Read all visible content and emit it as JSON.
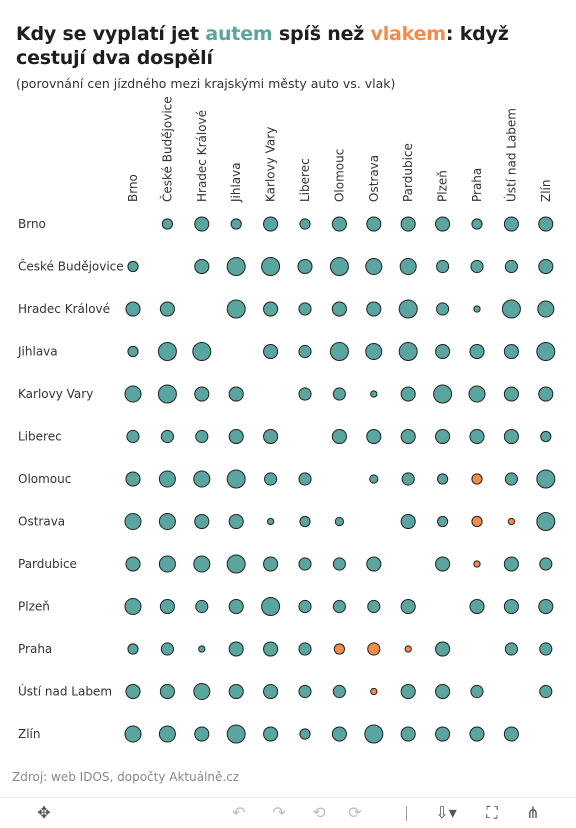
{
  "title": {
    "part1": "Kdy se vyplatí jet ",
    "car_word": "autem",
    "part2": " spíš než ",
    "train_word": "vlakem",
    "part3": ": když cestují dva dospělí"
  },
  "subtitle": "(porovnání cen jízdného mezi krajskými městy auto vs. vlak)",
  "source": "Zdroj: web IDOS, dopočty Aktuálně.cz",
  "colors": {
    "car": "#5aa59f",
    "train": "#f28b4c",
    "stroke": "#222222"
  },
  "toolbar": {
    "move_icon": "✥",
    "undo_icon": "↶",
    "redo_icon": "↷",
    "revert_icon": "⟲",
    "refresh_icon": "⟳",
    "download_icon": "⇩▾",
    "fullscreen_icon": "⛶",
    "share_icon": "⋔"
  },
  "chart_data": {
    "type": "scatter",
    "note_encoding": "bubble matrix; size = relative price difference, color = cheaper mode",
    "columns": [
      "Brno",
      "České Budějovice",
      "Hradec Králové",
      "Jihlava",
      "Karlovy Vary",
      "Liberec",
      "Olomouc",
      "Ostrava",
      "Pardubice",
      "Plzeň",
      "Praha",
      "Ústí nad Labem",
      "Zlín"
    ],
    "rows": [
      "Brno",
      "České Budějovice",
      "Hradec Králové",
      "Jihlava",
      "Karlovy Vary",
      "Liberec",
      "Olomouc",
      "Ostrava",
      "Pardubice",
      "Plzeň",
      "Praha",
      "Ústí nad Labem",
      "Zlín"
    ],
    "sizes": [
      [
        null,
        2,
        3,
        2,
        3,
        2,
        3,
        3,
        3,
        3,
        2,
        3,
        3
      ],
      [
        2,
        null,
        3,
        4,
        4,
        3,
        4,
        3.5,
        3.5,
        2.5,
        2.5,
        2.5,
        3
      ],
      [
        3,
        3,
        null,
        4,
        3,
        2.5,
        3,
        3,
        4,
        2.5,
        1,
        4,
        3.5
      ],
      [
        2,
        4,
        4,
        null,
        3,
        2.5,
        4,
        3.5,
        4,
        3,
        3,
        3,
        4
      ],
      [
        3.5,
        4,
        3,
        3,
        null,
        2.5,
        2.5,
        1,
        3,
        4,
        3.5,
        3,
        3
      ],
      [
        2.5,
        2.5,
        2.5,
        3,
        3,
        null,
        3,
        3,
        3,
        3,
        3,
        3,
        2
      ],
      [
        3,
        3.5,
        3.5,
        4,
        2.5,
        2.5,
        null,
        1.5,
        2.5,
        2,
        2,
        2.5,
        4
      ],
      [
        3.5,
        3.5,
        3,
        3,
        1,
        2,
        1.5,
        null,
        3,
        2,
        2,
        1,
        4
      ],
      [
        3,
        3.5,
        3.5,
        4,
        3,
        2.5,
        2.5,
        3,
        null,
        3,
        1,
        3,
        2.5
      ],
      [
        3.5,
        3,
        2.5,
        3,
        4,
        2.5,
        2.5,
        2.5,
        3,
        null,
        3,
        3,
        3
      ],
      [
        2,
        2.5,
        1,
        3,
        3,
        2.5,
        2,
        2.5,
        1,
        3,
        null,
        2.5,
        2.5
      ],
      [
        3,
        3,
        3.5,
        3,
        3,
        2.5,
        2.5,
        1,
        3,
        3,
        2.5,
        null,
        2.5
      ],
      [
        3.5,
        3.5,
        3,
        4,
        3,
        2,
        3,
        4,
        3,
        3,
        3,
        3,
        null
      ]
    ],
    "colors": [
      [
        null,
        "car",
        "car",
        "car",
        "car",
        "car",
        "car",
        "car",
        "car",
        "car",
        "car",
        "car",
        "car"
      ],
      [
        "car",
        null,
        "car",
        "car",
        "car",
        "car",
        "car",
        "car",
        "car",
        "car",
        "car",
        "car",
        "car"
      ],
      [
        "car",
        "car",
        null,
        "car",
        "car",
        "car",
        "car",
        "car",
        "car",
        "car",
        "car",
        "car",
        "car"
      ],
      [
        "car",
        "car",
        "car",
        null,
        "car",
        "car",
        "car",
        "car",
        "car",
        "car",
        "car",
        "car",
        "car"
      ],
      [
        "car",
        "car",
        "car",
        "car",
        null,
        "car",
        "car",
        "car",
        "car",
        "car",
        "car",
        "car",
        "car"
      ],
      [
        "car",
        "car",
        "car",
        "car",
        "car",
        null,
        "car",
        "car",
        "car",
        "car",
        "car",
        "car",
        "car"
      ],
      [
        "car",
        "car",
        "car",
        "car",
        "car",
        "car",
        null,
        "car",
        "car",
        "car",
        "train",
        "car",
        "car"
      ],
      [
        "car",
        "car",
        "car",
        "car",
        "car",
        "car",
        "car",
        null,
        "car",
        "car",
        "train",
        "train",
        "car"
      ],
      [
        "car",
        "car",
        "car",
        "car",
        "car",
        "car",
        "car",
        "car",
        null,
        "car",
        "train",
        "car",
        "car"
      ],
      [
        "car",
        "car",
        "car",
        "car",
        "car",
        "car",
        "car",
        "car",
        "car",
        null,
        "car",
        "car",
        "car"
      ],
      [
        "car",
        "car",
        "car",
        "car",
        "car",
        "car",
        "train",
        "train",
        "train",
        "car",
        null,
        "car",
        "car"
      ],
      [
        "car",
        "car",
        "car",
        "car",
        "car",
        "car",
        "car",
        "train",
        "car",
        "car",
        "car",
        null,
        "car"
      ],
      [
        "car",
        "car",
        "car",
        "car",
        "car",
        "car",
        "car",
        "car",
        "car",
        "car",
        "car",
        "car",
        null
      ]
    ],
    "legend": {
      "car": "autem",
      "train": "vlakem"
    }
  }
}
